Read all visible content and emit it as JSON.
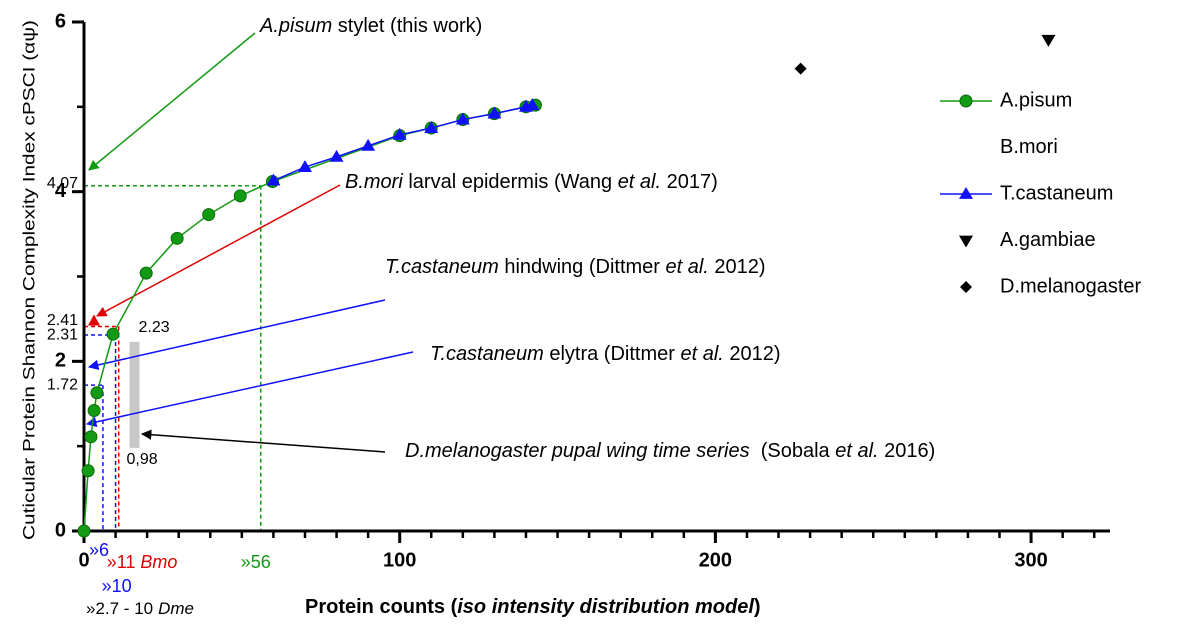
{
  "chart_data": {
    "type": "scatter",
    "xlabel": [
      {
        "text": "Protein counts (",
        "bold": true
      },
      {
        "text": "iso intensity distribution model",
        "bold": true,
        "italic": true
      },
      {
        "text": ")",
        "bold": true
      }
    ],
    "ylabel": "Cuticular Protein Shannon Complexity Index cPSCI (αψ)",
    "xlim": [
      0,
      325
    ],
    "ylim": [
      0,
      6
    ],
    "xticks": [
      0,
      100,
      200,
      300
    ],
    "yticks": [
      0,
      2,
      4,
      6
    ],
    "x_minor_step": 10,
    "y_minor_step": 1,
    "series": [
      {
        "name": "A.pisum",
        "color": "#139a13",
        "marker": "circle",
        "line": true,
        "x": [
          0,
          1.3,
          2.2,
          3.2,
          4.1,
          9.2,
          19.7,
          29.5,
          39.5,
          49.5,
          59.7,
          100,
          110,
          120,
          130,
          140,
          143
        ],
        "values": [
          0,
          0.71,
          1.11,
          1.42,
          1.63,
          2.32,
          3.04,
          3.45,
          3.73,
          3.95,
          4.12,
          4.66,
          4.75,
          4.85,
          4.92,
          5.0,
          5.02
        ]
      },
      {
        "name": "B.mori",
        "color": "#ffffff",
        "marker": "none",
        "line": false,
        "x": [],
        "values": []
      },
      {
        "name": "T.castaneum",
        "color": "#1010ff",
        "marker": "triangle",
        "line": true,
        "x": [
          60,
          70,
          80,
          90,
          100,
          110,
          120,
          130,
          140,
          142
        ],
        "values": [
          4.13,
          4.29,
          4.41,
          4.54,
          4.67,
          4.75,
          4.85,
          4.92,
          5.0,
          5.02
        ]
      },
      {
        "name": "A.gambiae",
        "color": "#000000",
        "label_color": "#b0b0b0",
        "marker": "triangle-down",
        "line": false,
        "x": [
          305.5
        ],
        "values": [
          5.79
        ]
      },
      {
        "name": "D.melanogaster",
        "color": "#000000",
        "marker": "diamond",
        "line": false,
        "x": [
          227
        ],
        "values": [
          5.45
        ]
      }
    ],
    "guides": [
      {
        "x": {
          "value": 56,
          "label": "»56"
        },
        "y": 4.07,
        "color": "#139a13"
      },
      {
        "x": {
          "value": 11,
          "label": "»11"
        },
        "x_suffix": "Bmo",
        "y": 2.41,
        "color": "#e00000"
      },
      {
        "x": {
          "value": 10,
          "label": "»10"
        },
        "y": 2.31,
        "color": "#1010ff"
      },
      {
        "x": {
          "value": 6,
          "label": "»6"
        },
        "y": 1.72,
        "color": "#1010ff"
      }
    ],
    "dme_range": {
      "x": 16,
      "low": {
        "value": 0.98,
        "label": "0,98"
      },
      "high": 2.23,
      "note": "»2.7 - 10",
      "note_suffix": "Dme"
    },
    "annotations": [
      {
        "color": "#139a13",
        "parts": [
          {
            "text": "A.pisum",
            "italic": true
          },
          {
            "text": " stylet (this work)"
          }
        ]
      },
      {
        "color": "#e00000",
        "parts": [
          {
            "text": "B.mori",
            "italic": true
          },
          {
            "text": " larval epidermis (Wang "
          },
          {
            "text": "et al.",
            "italic": true
          },
          {
            "text": " 2017)"
          }
        ]
      },
      {
        "color": "#1010ff",
        "parts": [
          {
            "text": "T.castaneum",
            "italic": true
          },
          {
            "text": " hindwing (Dittmer "
          },
          {
            "text": "et al.",
            "italic": true
          },
          {
            "text": " 2012)"
          }
        ]
      },
      {
        "color": "#1010ff",
        "parts": [
          {
            "text": "T.castaneum",
            "italic": true
          },
          {
            "text": " elytra (Dittmer "
          },
          {
            "text": "et al.",
            "italic": true
          },
          {
            "text": " 2012)"
          }
        ]
      },
      {
        "color": "#000000",
        "parts": [
          {
            "text": "D.melanogaster pupal wing time series",
            "italic": true
          },
          {
            "text": "  (Sobala "
          },
          {
            "text": "et al.",
            "italic": true
          },
          {
            "text": " 2016)"
          }
        ]
      }
    ]
  }
}
